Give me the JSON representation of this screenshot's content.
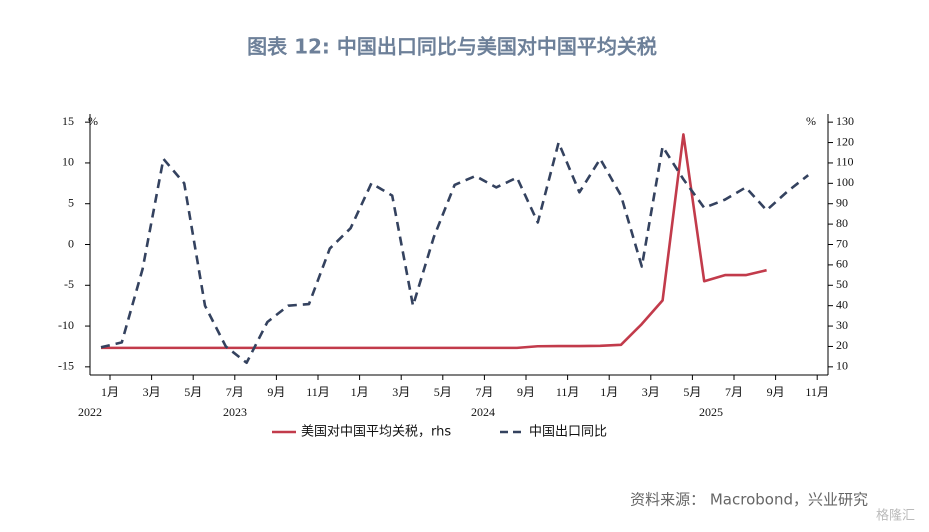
{
  "chart_data": {
    "type": "line",
    "title": "图表 12:  中国出口同比与美国对中国平均关税",
    "y_unit": "%",
    "y2_unit": "%",
    "categories": [
      "1月",
      null,
      "3月",
      null,
      "5月",
      null,
      "7月",
      null,
      "9月",
      null,
      "11月",
      null,
      "1月",
      null,
      "3月",
      null,
      "5月",
      null,
      "7月",
      null,
      "9月",
      null,
      "11月",
      null,
      "1月",
      null,
      "3月",
      null,
      "5月",
      null,
      "7月",
      null,
      "9月",
      null,
      "11月"
    ],
    "years": [
      "2022",
      "2023",
      "2024",
      "2025"
    ],
    "ylim": [
      -16,
      16
    ],
    "yticks": [
      -15,
      -10,
      -5,
      0,
      5,
      10,
      15
    ],
    "y2lim": [
      6,
      134
    ],
    "y2ticks": [
      10,
      20,
      30,
      40,
      50,
      60,
      70,
      80,
      90,
      100,
      110,
      120,
      130
    ],
    "series": [
      {
        "name": "美国对中国平均关税，rhs",
        "color": "#c23b4b",
        "axis": "y2",
        "dash": false,
        "values": [
          19.3,
          19.3,
          19.3,
          19.3,
          19.3,
          19.3,
          19.3,
          19.3,
          19.3,
          19.3,
          19.3,
          19.3,
          19.3,
          19.3,
          19.3,
          19.3,
          19.3,
          19.3,
          19.3,
          19.3,
          19.3,
          20.1,
          20.2,
          20.2,
          20.3,
          20.8,
          31,
          42.6,
          124,
          52,
          55,
          55,
          57.4,
          null,
          null
        ]
      },
      {
        "name": "中国出口同比",
        "color": "#34425f",
        "axis": "y",
        "dash": true,
        "values": [
          -12.6,
          -12,
          -3,
          10.5,
          7.5,
          -7.5,
          -12.5,
          -14.5,
          -9.5,
          -7.5,
          -7.3,
          -0.5,
          2,
          7.5,
          6,
          -7.5,
          0.9,
          7.3,
          8.4,
          7,
          8.2,
          2.7,
          12.5,
          6.4,
          10.5,
          6,
          -2.7,
          12,
          8,
          4.5,
          5.5,
          7,
          4.2,
          6.5,
          8.5
        ]
      }
    ],
    "source": "资料来源：   Macrobond，兴业研究",
    "watermark": "格隆汇"
  }
}
